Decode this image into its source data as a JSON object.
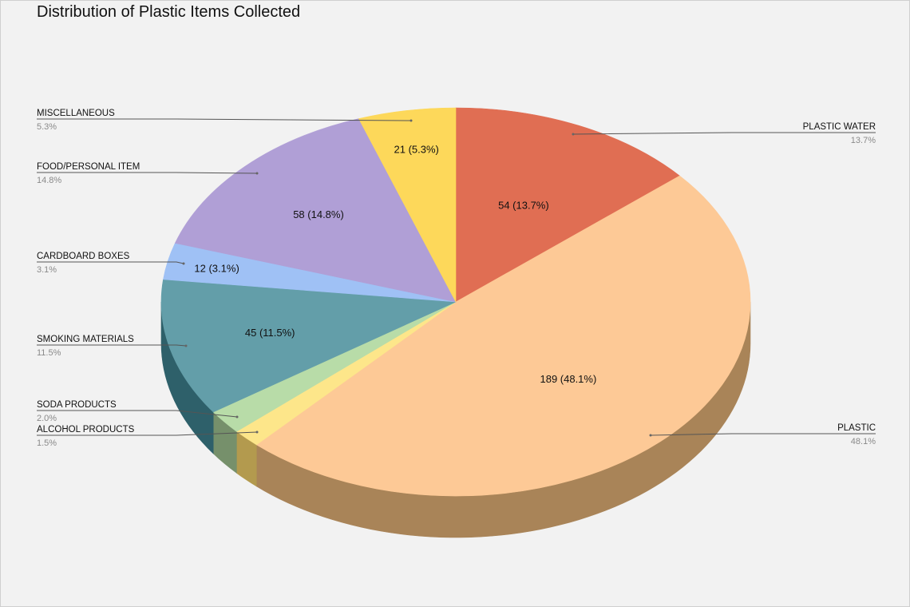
{
  "title": "Distribution of Plastic Items Collected",
  "chart_data": {
    "type": "pie",
    "title": "Distribution of Plastic Items Collected",
    "three_d": true,
    "slices": [
      {
        "label": "PLASTIC WATER",
        "value": 54,
        "pct": "13.7%",
        "data_label": "54 (13.7%)",
        "color": "#e06e53",
        "side_color": "#9b4a37"
      },
      {
        "label": "PLASTIC",
        "value": 189,
        "pct": "48.1%",
        "data_label": "189 (48.1%)",
        "color": "#fdc996",
        "side_color": "#a98458"
      },
      {
        "label": "ALCOHOL PRODUCTS",
        "value": 6,
        "pct": "1.5%",
        "data_label": "",
        "color": "#fde68a",
        "side_color": "#b39a4e"
      },
      {
        "label": "SODA PRODUCTS",
        "value": 8,
        "pct": "2.0%",
        "data_label": "",
        "color": "#b8dca8",
        "side_color": "#76906b"
      },
      {
        "label": "SMOKING MATERIALS",
        "value": 45,
        "pct": "11.5%",
        "data_label": "45 (11.5%)",
        "color": "#639ea9",
        "side_color": "#2e606a"
      },
      {
        "label": "CARDBOARD BOXES",
        "value": 12,
        "pct": "3.1%",
        "data_label": "12 (3.1%)",
        "color": "#9fc1f5",
        "side_color": "#6a84ab"
      },
      {
        "label": "FOOD/PERSONAL ITEM",
        "value": 58,
        "pct": "14.8%",
        "data_label": "58 (14.8%)",
        "color": "#b09fd6",
        "side_color": "#76699a"
      },
      {
        "label": "MISCELLANEOUS",
        "value": 21,
        "pct": "5.3%",
        "data_label": "21 (5.3%)",
        "color": "#fdd85a",
        "side_color": "#b3963a"
      }
    ]
  }
}
